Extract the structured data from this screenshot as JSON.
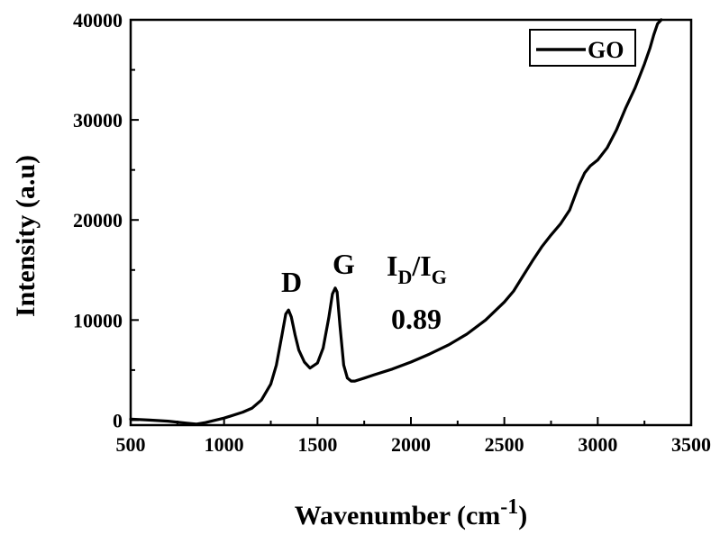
{
  "chart_data": {
    "type": "line",
    "xlabel": "Wavenumber (cm",
    "xlabel_sup": "-1",
    "xlabel_close": ")",
    "ylabel": "Intensity (a.u)",
    "xlim": [
      500,
      3500
    ],
    "ylim": [
      -500,
      40000
    ],
    "xticks": [
      500,
      1000,
      1500,
      2000,
      2500,
      3000,
      3500
    ],
    "yticks": [
      0,
      10000,
      20000,
      30000,
      40000
    ],
    "legend": {
      "label": "GO",
      "placement": "top-right"
    },
    "annotations": {
      "d_peak": "D",
      "g_peak": "G",
      "ratio_main1": "I",
      "ratio_sub1": "D",
      "ratio_slash": "/I",
      "ratio_sub2": "G",
      "ratio_value": "0.89"
    },
    "series": [
      {
        "name": "GO",
        "color": "#000000",
        "x": [
          500,
          600,
          700,
          800,
          850,
          900,
          1000,
          1100,
          1150,
          1200,
          1250,
          1280,
          1310,
          1330,
          1345,
          1360,
          1380,
          1400,
          1430,
          1460,
          1500,
          1530,
          1560,
          1580,
          1595,
          1605,
          1620,
          1640,
          1660,
          1680,
          1700,
          1750,
          1800,
          1900,
          2000,
          2100,
          2200,
          2300,
          2400,
          2500,
          2550,
          2600,
          2650,
          2700,
          2750,
          2800,
          2850,
          2900,
          2930,
          2960,
          3000,
          3050,
          3100,
          3150,
          3200,
          3250,
          3280,
          3300,
          3320,
          3340
        ],
        "y": [
          100,
          0,
          -100,
          -300,
          -400,
          -250,
          200,
          800,
          1200,
          2000,
          3600,
          5500,
          8500,
          10600,
          11000,
          10300,
          8500,
          7000,
          5800,
          5200,
          5700,
          7200,
          10200,
          12600,
          13200,
          12800,
          9500,
          5500,
          4200,
          3900,
          3900,
          4200,
          4500,
          5100,
          5800,
          6600,
          7500,
          8600,
          10000,
          11800,
          12900,
          14400,
          15900,
          17300,
          18500,
          19600,
          21000,
          23500,
          24700,
          25400,
          26000,
          27200,
          29000,
          31200,
          33200,
          35600,
          37200,
          38500,
          39600,
          40000
        ]
      }
    ]
  }
}
